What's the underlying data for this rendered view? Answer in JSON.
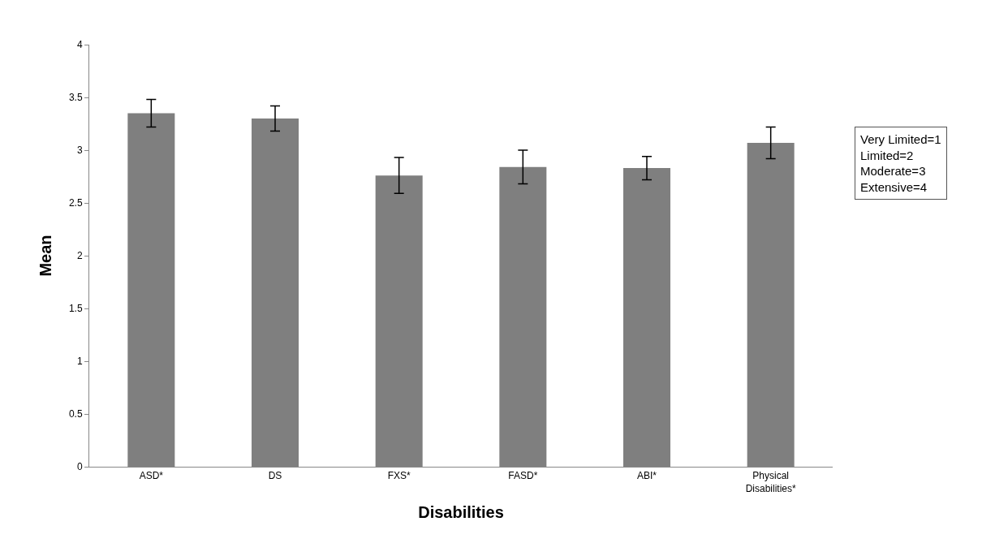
{
  "chart_data": {
    "type": "bar",
    "xlabel": "Disabilities",
    "ylabel": "Mean",
    "categories": [
      "ASD*",
      "DS",
      "FXS*",
      "FASD*",
      "ABI*",
      "Physical Disabilities*"
    ],
    "values": [
      3.35,
      3.3,
      2.76,
      2.84,
      2.83,
      3.07
    ],
    "errors": [
      0.13,
      0.12,
      0.17,
      0.16,
      0.11,
      0.15
    ],
    "color": "#7f7f7f",
    "ylim": [
      0,
      4
    ],
    "yticks": [
      0,
      0.5,
      1,
      1.5,
      2,
      2.5,
      3,
      3.5,
      4
    ],
    "annotations": [
      "Very Limited=1\nLimited=2\nModerate=3\nExtensive=4"
    ]
  }
}
